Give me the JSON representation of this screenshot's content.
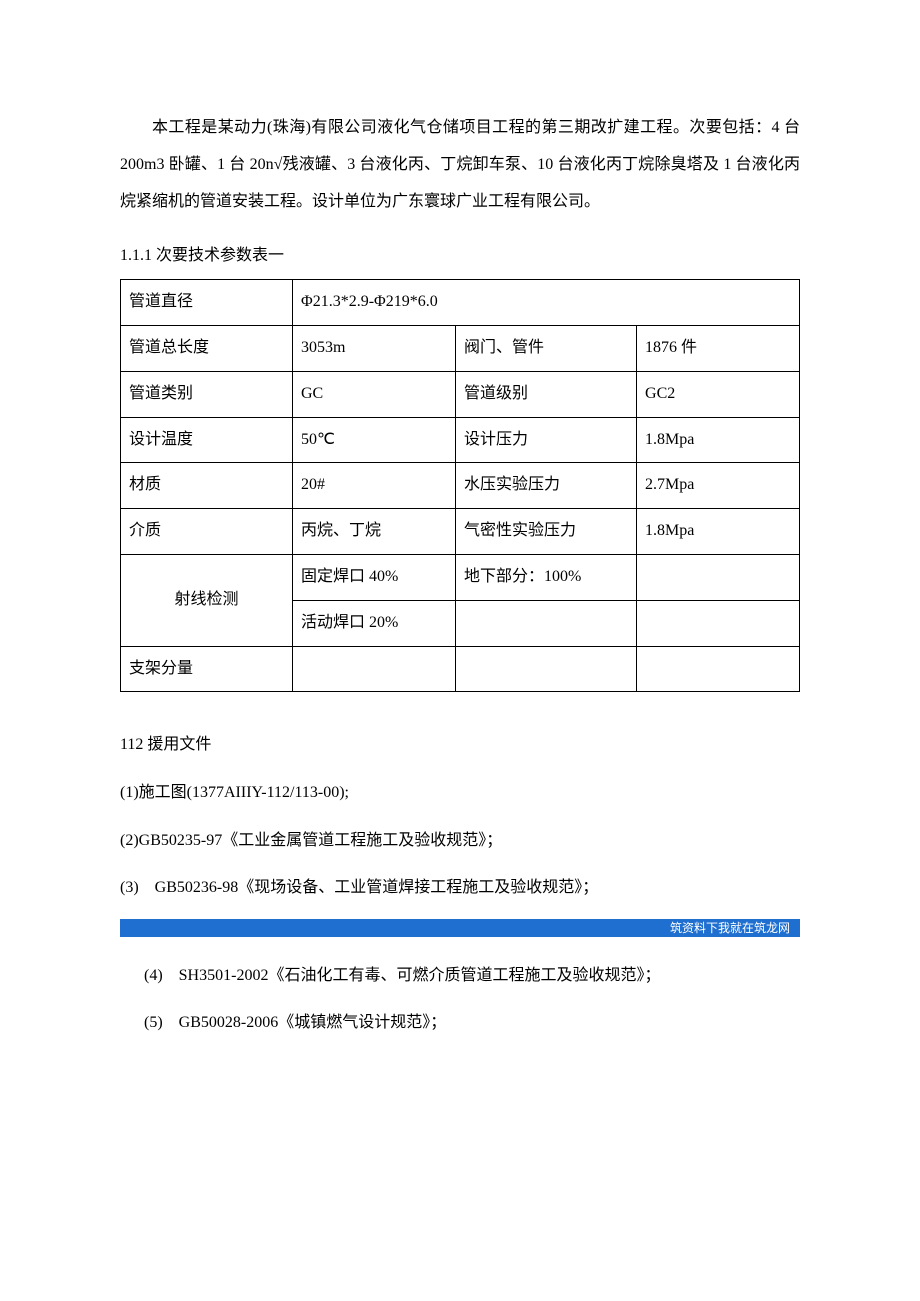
{
  "intro": "本工程是某动力(珠海)有限公司液化气仓储项目工程的第三期改扩建工程。次要包括：4 台 200m3 卧罐、1 台 20n√残液罐、3 台液化丙、丁烷卸车泵、10 台液化丙丁烷除臭塔及 1 台液化丙烷紧缩机的管道安装工程。设计单位为广东寰球广业工程有限公司。",
  "table_title": "1.1.1 次要技术参数表一",
  "table": {
    "r1": {
      "c1": "管道直径",
      "c2": " Φ21.3*2.9-Φ219*6.0"
    },
    "r2": {
      "c1": "管道总长度",
      "c2": "3053m",
      "c3": "阀门、管件",
      "c4": "1876 件"
    },
    "r3": {
      "c1": "管道类别",
      "c2": "GC",
      "c3": "管道级别",
      "c4": "GC2"
    },
    "r4": {
      "c1": "设计温度",
      "c2": "50℃",
      "c3": "设计压力",
      "c4": "1.8Mpa"
    },
    "r5": {
      "c1": "材质",
      "c2": "20#",
      "c3": "水压实验压力",
      "c4": "2.7Mpa"
    },
    "r6": {
      "c1": "介质",
      "c2": "丙烷、丁烷",
      "c3": "气密性实验压力",
      "c4": "1.8Mpa"
    },
    "r7": {
      "c1": "射线检测",
      "c2": "固定焊口 40%",
      "c3": "地下部分：100%",
      "c4": ""
    },
    "r8": {
      "c2": "活动焊口 20%",
      "c3": "",
      "c4": ""
    },
    "r9": {
      "c1": "支架分量",
      "c2": "",
      "c3": "",
      "c4": ""
    }
  },
  "refs_title": "112 援用文件",
  "refs": {
    "i1": "(1)施工图(1377AIIIY-112/113-00);",
    "i2": "(2)GB50235-97《工业金属管道工程施工及验收规范》；",
    "i3": "(3)　GB50236-98《现场设备、工业管道焊接工程施工及验收规范》；"
  },
  "banner": "筑资料下我就在筑龙网",
  "after_refs": {
    "i4": "(4)　SH3501-2002《石油化工有毒、可燃介质管道工程施工及验收规范》；",
    "i5": "(5)　GB50028-2006《城镇燃气设计规范》；"
  }
}
